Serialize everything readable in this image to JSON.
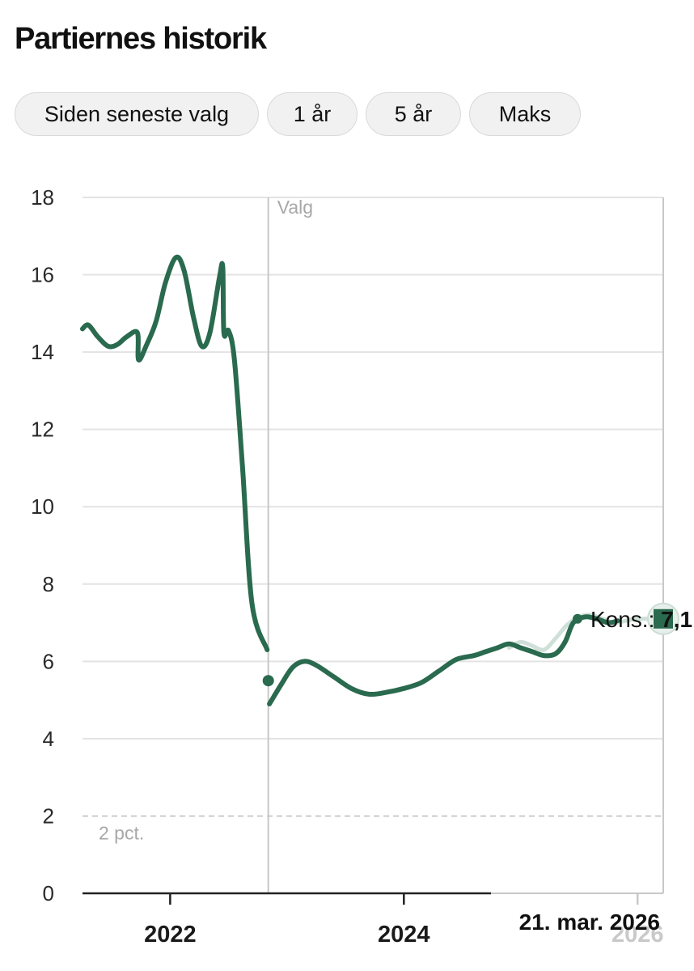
{
  "title": "Partiernes historik",
  "tabs": [
    {
      "label": "Siden seneste valg",
      "active": false
    },
    {
      "label": "1 år",
      "active": false
    },
    {
      "label": "5 år",
      "active": true
    },
    {
      "label": "Maks",
      "active": false
    }
  ],
  "colors": {
    "line": "#2a6a4f",
    "line_faint": "#cfe0d8",
    "grid": "#e3e3e3",
    "axis": "#222222",
    "vline": "#c8c8c8",
    "threshold": "#bbbbbb"
  },
  "chart_data": {
    "type": "line",
    "title": "Partiernes historik",
    "xlabel": "",
    "ylabel": "",
    "xlim": [
      2021.25,
      2026.22
    ],
    "ylim": [
      0,
      18
    ],
    "y_ticks": [
      0,
      2,
      4,
      6,
      8,
      10,
      12,
      14,
      16,
      18
    ],
    "x_ticks": [
      {
        "label": "2022",
        "value": 2022.0,
        "faint": false
      },
      {
        "label": "2024",
        "value": 2024.0,
        "faint": false
      },
      {
        "label": "2026",
        "value": 2026.0,
        "faint": true
      }
    ],
    "election": {
      "label": "Valg",
      "x": 2022.84
    },
    "threshold": {
      "value": 2,
      "label": "2 pct."
    },
    "series": [
      {
        "name": "Kons. (før valg)",
        "style": "solid",
        "points": [
          [
            2021.25,
            14.6
          ],
          [
            2021.3,
            14.7
          ],
          [
            2021.38,
            14.4
          ],
          [
            2021.47,
            14.15
          ],
          [
            2021.55,
            14.2
          ],
          [
            2021.63,
            14.4
          ],
          [
            2021.72,
            14.5
          ],
          [
            2021.73,
            13.8
          ],
          [
            2021.8,
            14.2
          ],
          [
            2021.88,
            14.8
          ],
          [
            2021.96,
            15.8
          ],
          [
            2022.05,
            16.45
          ],
          [
            2022.12,
            16.1
          ],
          [
            2022.2,
            14.9
          ],
          [
            2022.27,
            14.15
          ],
          [
            2022.34,
            14.5
          ],
          [
            2022.42,
            15.9
          ],
          [
            2022.45,
            16.2
          ],
          [
            2022.46,
            14.5
          ],
          [
            2022.5,
            14.55
          ],
          [
            2022.55,
            13.8
          ],
          [
            2022.62,
            11.0
          ],
          [
            2022.7,
            7.5
          ],
          [
            2022.83,
            6.3
          ]
        ]
      },
      {
        "name": "Kons. (efter valg)",
        "style": "solid",
        "points": [
          [
            2022.85,
            4.9
          ],
          [
            2022.95,
            5.4
          ],
          [
            2023.05,
            5.85
          ],
          [
            2023.15,
            6.0
          ],
          [
            2023.25,
            5.9
          ],
          [
            2023.4,
            5.6
          ],
          [
            2023.55,
            5.3
          ],
          [
            2023.7,
            5.15
          ],
          [
            2023.85,
            5.2
          ],
          [
            2024.0,
            5.3
          ],
          [
            2024.15,
            5.45
          ],
          [
            2024.3,
            5.75
          ],
          [
            2024.45,
            6.05
          ],
          [
            2024.6,
            6.15
          ],
          [
            2024.7,
            6.25
          ],
          [
            2024.8,
            6.35
          ],
          [
            2024.9,
            6.45
          ],
          [
            2025.0,
            6.35
          ],
          [
            2025.1,
            6.25
          ],
          [
            2025.2,
            6.15
          ],
          [
            2025.3,
            6.2
          ],
          [
            2025.38,
            6.5
          ],
          [
            2025.45,
            7.0
          ],
          [
            2025.55,
            7.15
          ],
          [
            2025.65,
            7.1
          ],
          [
            2025.75,
            7.0
          ],
          [
            2025.83,
            7.05
          ]
        ]
      },
      {
        "name": "Kons. (seneste, lys)",
        "style": "faint",
        "points": [
          [
            2024.9,
            6.35
          ],
          [
            2025.0,
            6.5
          ],
          [
            2025.1,
            6.4
          ],
          [
            2025.2,
            6.3
          ],
          [
            2025.3,
            6.6
          ],
          [
            2025.4,
            6.95
          ],
          [
            2025.5,
            7.15
          ],
          [
            2025.6,
            7.2
          ],
          [
            2025.7,
            7.1
          ],
          [
            2025.8,
            7.0
          ],
          [
            2025.9,
            7.05
          ],
          [
            2026.0,
            7.1
          ],
          [
            2026.22,
            7.1
          ]
        ]
      }
    ],
    "markers": [
      {
        "name": "election-result",
        "x": 2022.84,
        "y": 5.5,
        "shape": "circle"
      },
      {
        "name": "latest",
        "x": 2026.22,
        "y": 7.1,
        "shape": "square"
      }
    ],
    "current_label": {
      "party": "Kons.:",
      "value": "7,1",
      "x": 2025.5,
      "y": 7.1
    },
    "date_label": "21. mar. 2026"
  }
}
